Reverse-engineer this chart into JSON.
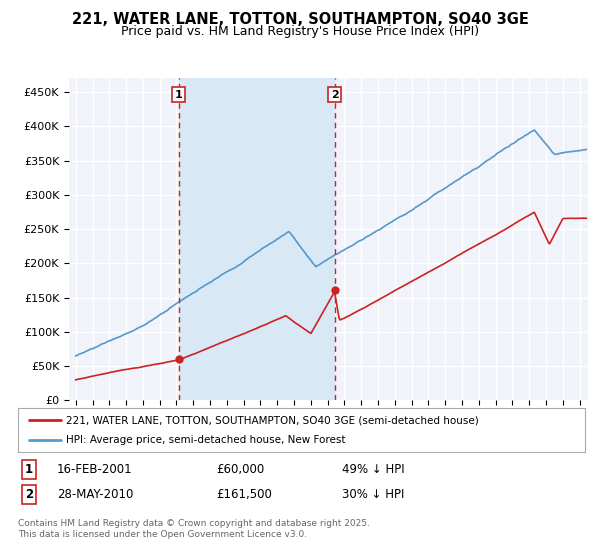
{
  "title_line1": "221, WATER LANE, TOTTON, SOUTHAMPTON, SO40 3GE",
  "title_line2": "Price paid vs. HM Land Registry's House Price Index (HPI)",
  "bg_color": "#ffffff",
  "plot_bg_color": "#f0f4fa",
  "shade_color": "#d8e8f5",
  "grid_color": "#ffffff",
  "line1_color": "#cc2222",
  "line2_color": "#5599cc",
  "ylim": [
    0,
    470000
  ],
  "yticks": [
    0,
    50000,
    100000,
    150000,
    200000,
    250000,
    300000,
    350000,
    400000,
    450000
  ],
  "purchase1_date": "16-FEB-2001",
  "purchase1_price": 60000,
  "purchase2_date": "28-MAY-2010",
  "purchase2_price": 161500,
  "purchase1_hpi_pct": "49% ↓ HPI",
  "purchase2_hpi_pct": "30% ↓ HPI",
  "legend_line1": "221, WATER LANE, TOTTON, SOUTHAMPTON, SO40 3GE (semi-detached house)",
  "legend_line2": "HPI: Average price, semi-detached house, New Forest",
  "footnote": "Contains HM Land Registry data © Crown copyright and database right 2025.\nThis data is licensed under the Open Government Licence v3.0.",
  "marker1_x": 2001.12,
  "marker2_x": 2010.41,
  "xlim_left": 1994.6,
  "xlim_right": 2025.5
}
